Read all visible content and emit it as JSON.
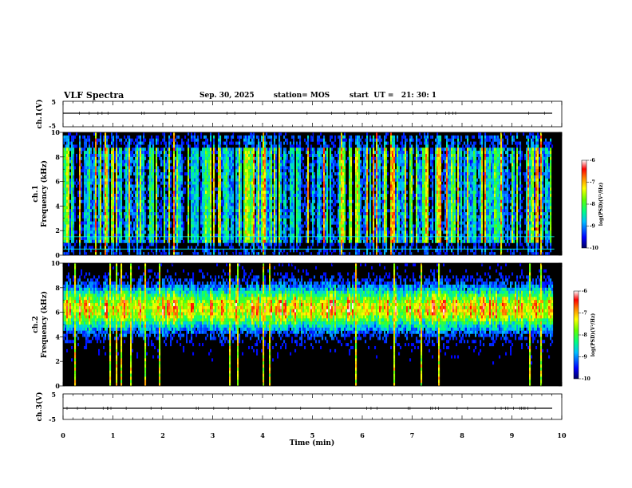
{
  "header": {
    "title": "VLF Spectra",
    "date": "Sep. 30, 2025",
    "station": "station= MOS",
    "start_ut": "start  UT =   21: 30: 1"
  },
  "chart_data": [
    {
      "type": "line",
      "name": "ch1-waveform",
      "ylabel": "ch.1(V)",
      "ylim": [
        -5,
        5
      ],
      "y_ticks": [
        "5",
        "-5"
      ],
      "x": [
        0,
        10
      ],
      "values": [
        0,
        0
      ]
    },
    {
      "type": "heatmap",
      "name": "ch1-spectrogram",
      "ylabel": "ch.1\nFrequency (kHz)",
      "ylim": [
        0,
        10
      ],
      "y_ticks": [
        "0",
        "2",
        "4",
        "6",
        "8",
        "10"
      ],
      "xlim": [
        0,
        10
      ],
      "data_end_min": 9.85,
      "colorbar": {
        "label": "log(PSD)(V²/Hz)",
        "range": [
          -10,
          -6
        ],
        "ticks": [
          "-6",
          "-7",
          "-8",
          "-9",
          "-10"
        ]
      }
    },
    {
      "type": "heatmap",
      "name": "ch2-spectrogram",
      "ylabel": "ch.2\nFrequency (kHz)",
      "ylim": [
        0,
        10
      ],
      "y_ticks": [
        "0",
        "2",
        "4",
        "6",
        "8",
        "10"
      ],
      "xlim": [
        0,
        10
      ],
      "data_end_min": 9.85,
      "colorbar": {
        "label": "log(PSD)(V²/Hz)",
        "range": [
          -10,
          -6
        ],
        "ticks": [
          "-6",
          "-7",
          "-8",
          "-9",
          "-10"
        ]
      }
    },
    {
      "type": "line",
      "name": "ch3-waveform",
      "ylabel": "ch.3(V)",
      "ylim": [
        -5,
        5
      ],
      "y_ticks": [
        "5",
        "-5"
      ],
      "x": [
        0,
        10
      ],
      "values": [
        0,
        0
      ]
    }
  ],
  "x_axis": {
    "label": "Time (min)",
    "ticks": [
      "0",
      "1",
      "2",
      "3",
      "4",
      "5",
      "6",
      "7",
      "8",
      "9",
      "10"
    ]
  },
  "colors": {
    "background": "#000000",
    "colormap": [
      "#00007f",
      "#0000ff",
      "#00bfff",
      "#00ff7f",
      "#7fff00",
      "#ffff00",
      "#ff7f00",
      "#ff0000",
      "#ffffff"
    ]
  }
}
